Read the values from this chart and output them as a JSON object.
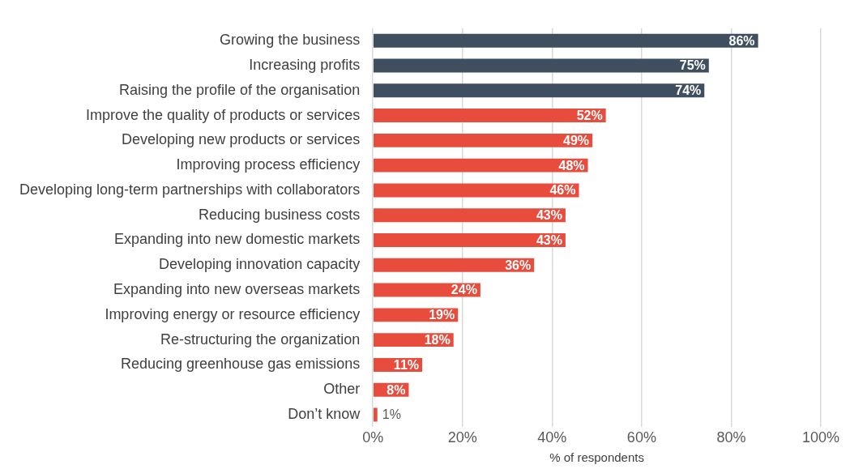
{
  "chart_data": {
    "type": "bar",
    "orientation": "horizontal",
    "xlabel": "% of respondents",
    "categories": [
      "Growing the business",
      "Increasing profits",
      "Raising the profile of the organisation",
      "Improve the quality of products or services",
      "Developing new products or services",
      "Improving process efficiency",
      "Developing long-term partnerships with collaborators",
      "Reducing business costs",
      "Expanding into new domestic markets",
      "Developing innovation capacity",
      "Expanding into new overseas markets",
      "Improving energy or resource efficiency",
      "Re-structuring the organization",
      "Reducing greenhouse gas emissions",
      "Other",
      "Don’t know"
    ],
    "values": [
      86,
      75,
      74,
      52,
      49,
      48,
      46,
      43,
      43,
      36,
      24,
      19,
      18,
      11,
      8,
      1
    ],
    "colors": [
      "#3f4f5f",
      "#3f4f5f",
      "#3f4f5f",
      "#e84c3d",
      "#e84c3d",
      "#e84c3d",
      "#e84c3d",
      "#e84c3d",
      "#e84c3d",
      "#e84c3d",
      "#e84c3d",
      "#e84c3d",
      "#e84c3d",
      "#e84c3d",
      "#e84c3d",
      "#e84c3d"
    ],
    "value_labels": [
      "86%",
      "75%",
      "74%",
      "52%",
      "49%",
      "48%",
      "46%",
      "43%",
      "43%",
      "36%",
      "24%",
      "19%",
      "18%",
      "11%",
      "8%",
      "1%"
    ],
    "xlim": [
      0,
      100
    ],
    "xticks": [
      {
        "value": 0,
        "label": "0%"
      },
      {
        "value": 20,
        "label": "20%"
      },
      {
        "value": 40,
        "label": "40%"
      },
      {
        "value": 60,
        "label": "60%"
      },
      {
        "value": 80,
        "label": "80%"
      },
      {
        "value": 100,
        "label": "100%"
      }
    ],
    "grid": "x",
    "legend": false
  }
}
